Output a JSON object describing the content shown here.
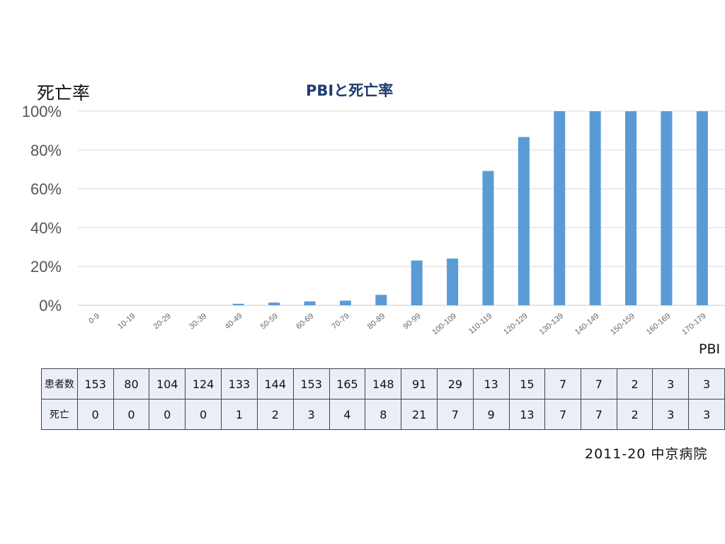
{
  "chart_data": {
    "type": "bar",
    "title": "PBIと死亡率",
    "ylabel": "死亡率",
    "xlabel": "PBI",
    "ylim": [
      0,
      100
    ],
    "yticks": [
      "0%",
      "20%",
      "40%",
      "60%",
      "80%",
      "100%"
    ],
    "grid": true,
    "categories": [
      "0-9",
      "10-19",
      "20-29",
      "30-39",
      "40-49",
      "50-59",
      "60-69",
      "70-79",
      "80-89",
      "90-99",
      "100-109",
      "110-119",
      "120-129",
      "130-139",
      "140-149",
      "150-159",
      "160-169",
      "170-179"
    ],
    "values": [
      0,
      0,
      0,
      0,
      0.8,
      1.4,
      2.0,
      2.4,
      5.4,
      23.1,
      24.1,
      69.2,
      86.7,
      100,
      100,
      100,
      100,
      100
    ],
    "bar_color": "#5b9bd5"
  },
  "table": {
    "rows": [
      {
        "label": "患者数",
        "values": [
          "153",
          "80",
          "104",
          "124",
          "133",
          "144",
          "153",
          "165",
          "148",
          "91",
          "29",
          "13",
          "15",
          "7",
          "7",
          "2",
          "3",
          "3"
        ]
      },
      {
        "label": "死亡",
        "values": [
          "0",
          "0",
          "0",
          "0",
          "1",
          "2",
          "3",
          "4",
          "8",
          "21",
          "7",
          "9",
          "13",
          "7",
          "7",
          "2",
          "3",
          "3"
        ]
      }
    ]
  },
  "source": "2011-20 中京病院"
}
